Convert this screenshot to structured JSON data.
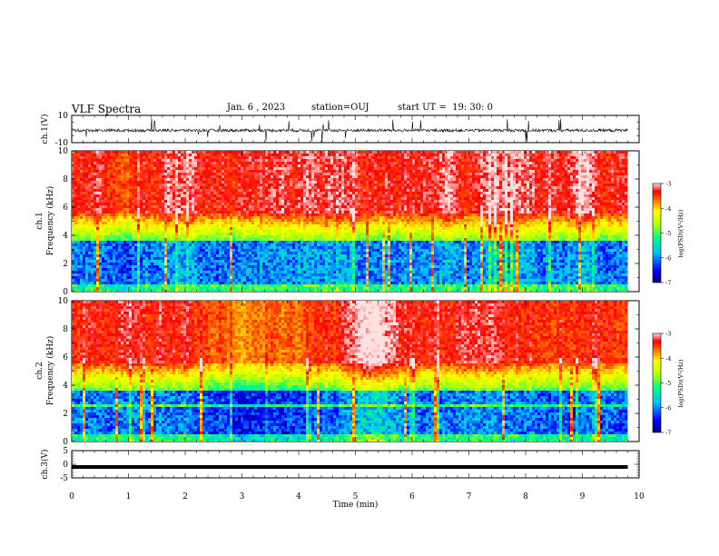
{
  "header": {
    "title": "VLF Spectra",
    "date": "Jan. 6 , 2023",
    "station": "station=OUJ",
    "start": "start UT =  19: 30: 0"
  },
  "chart_data": [
    {
      "type": "line",
      "panel": "ch1",
      "ylabel": "ch.1(V)",
      "ylim": [
        -10,
        10
      ],
      "y_ticks": [
        "10",
        "-10"
      ],
      "xlim": [
        0,
        10
      ],
      "series": [
        {
          "values_summary": "noisy waveform around -1 V with spikes"
        }
      ]
    },
    {
      "type": "heatmap",
      "panel": "ch1-spectrogram",
      "ylabel_top": "ch.1",
      "ylabel": "Frequency (kHz)",
      "ylim": [
        0,
        10
      ],
      "y_ticks": [
        "0",
        "2",
        "4",
        "6",
        "8",
        "10"
      ],
      "xlim": [
        0,
        10
      ],
      "data_end_min": 9.8,
      "colorbar": {
        "label": "log(PSD)(V²/Hz)",
        "range": [
          -7,
          -3
        ],
        "ticks": [
          "-3",
          "-4",
          "-5",
          "-6",
          "-7"
        ]
      },
      "description_levels": {
        "low_band_khz": [
          0.5,
          3.5
        ],
        "transition_khz": [
          3.5,
          5.5
        ],
        "high_band_khz": [
          5.5,
          10
        ]
      }
    },
    {
      "type": "heatmap",
      "panel": "ch2-spectrogram",
      "ylabel_top": "ch.2",
      "ylabel": "Frequency (kHz)",
      "ylim": [
        0,
        10
      ],
      "y_ticks": [
        "0",
        "2",
        "4",
        "6",
        "8",
        "10"
      ],
      "xlim": [
        0,
        10
      ],
      "data_end_min": 9.8,
      "colorbar": {
        "label": "log(PSD)(V²/Hz)",
        "range": [
          -7,
          -3
        ],
        "ticks": [
          "-3",
          "-4",
          "-5",
          "-6",
          "-7"
        ]
      }
    },
    {
      "type": "line",
      "panel": "ch3",
      "ylabel": "ch.3(V)",
      "ylim": [
        -5,
        5
      ],
      "y_ticks": [
        "5",
        "0",
        "-5"
      ],
      "xlim": [
        0,
        10
      ],
      "series": [
        {
          "values": [
            -1,
            -1
          ],
          "x": [
            0,
            9.8
          ]
        }
      ]
    }
  ],
  "x_axis": {
    "label": "Time (min)",
    "ticks": [
      "0",
      "1",
      "2",
      "3",
      "4",
      "5",
      "6",
      "7",
      "8",
      "9",
      "10"
    ]
  },
  "colors": {
    "ink": "#000000",
    "colormap": [
      "#000080",
      "#0000ff",
      "#00a0ff",
      "#00ffff",
      "#40ff80",
      "#c0ff00",
      "#ffff00",
      "#ffa000",
      "#ff3000",
      "#ff0000",
      "#ffc8c8"
    ]
  }
}
